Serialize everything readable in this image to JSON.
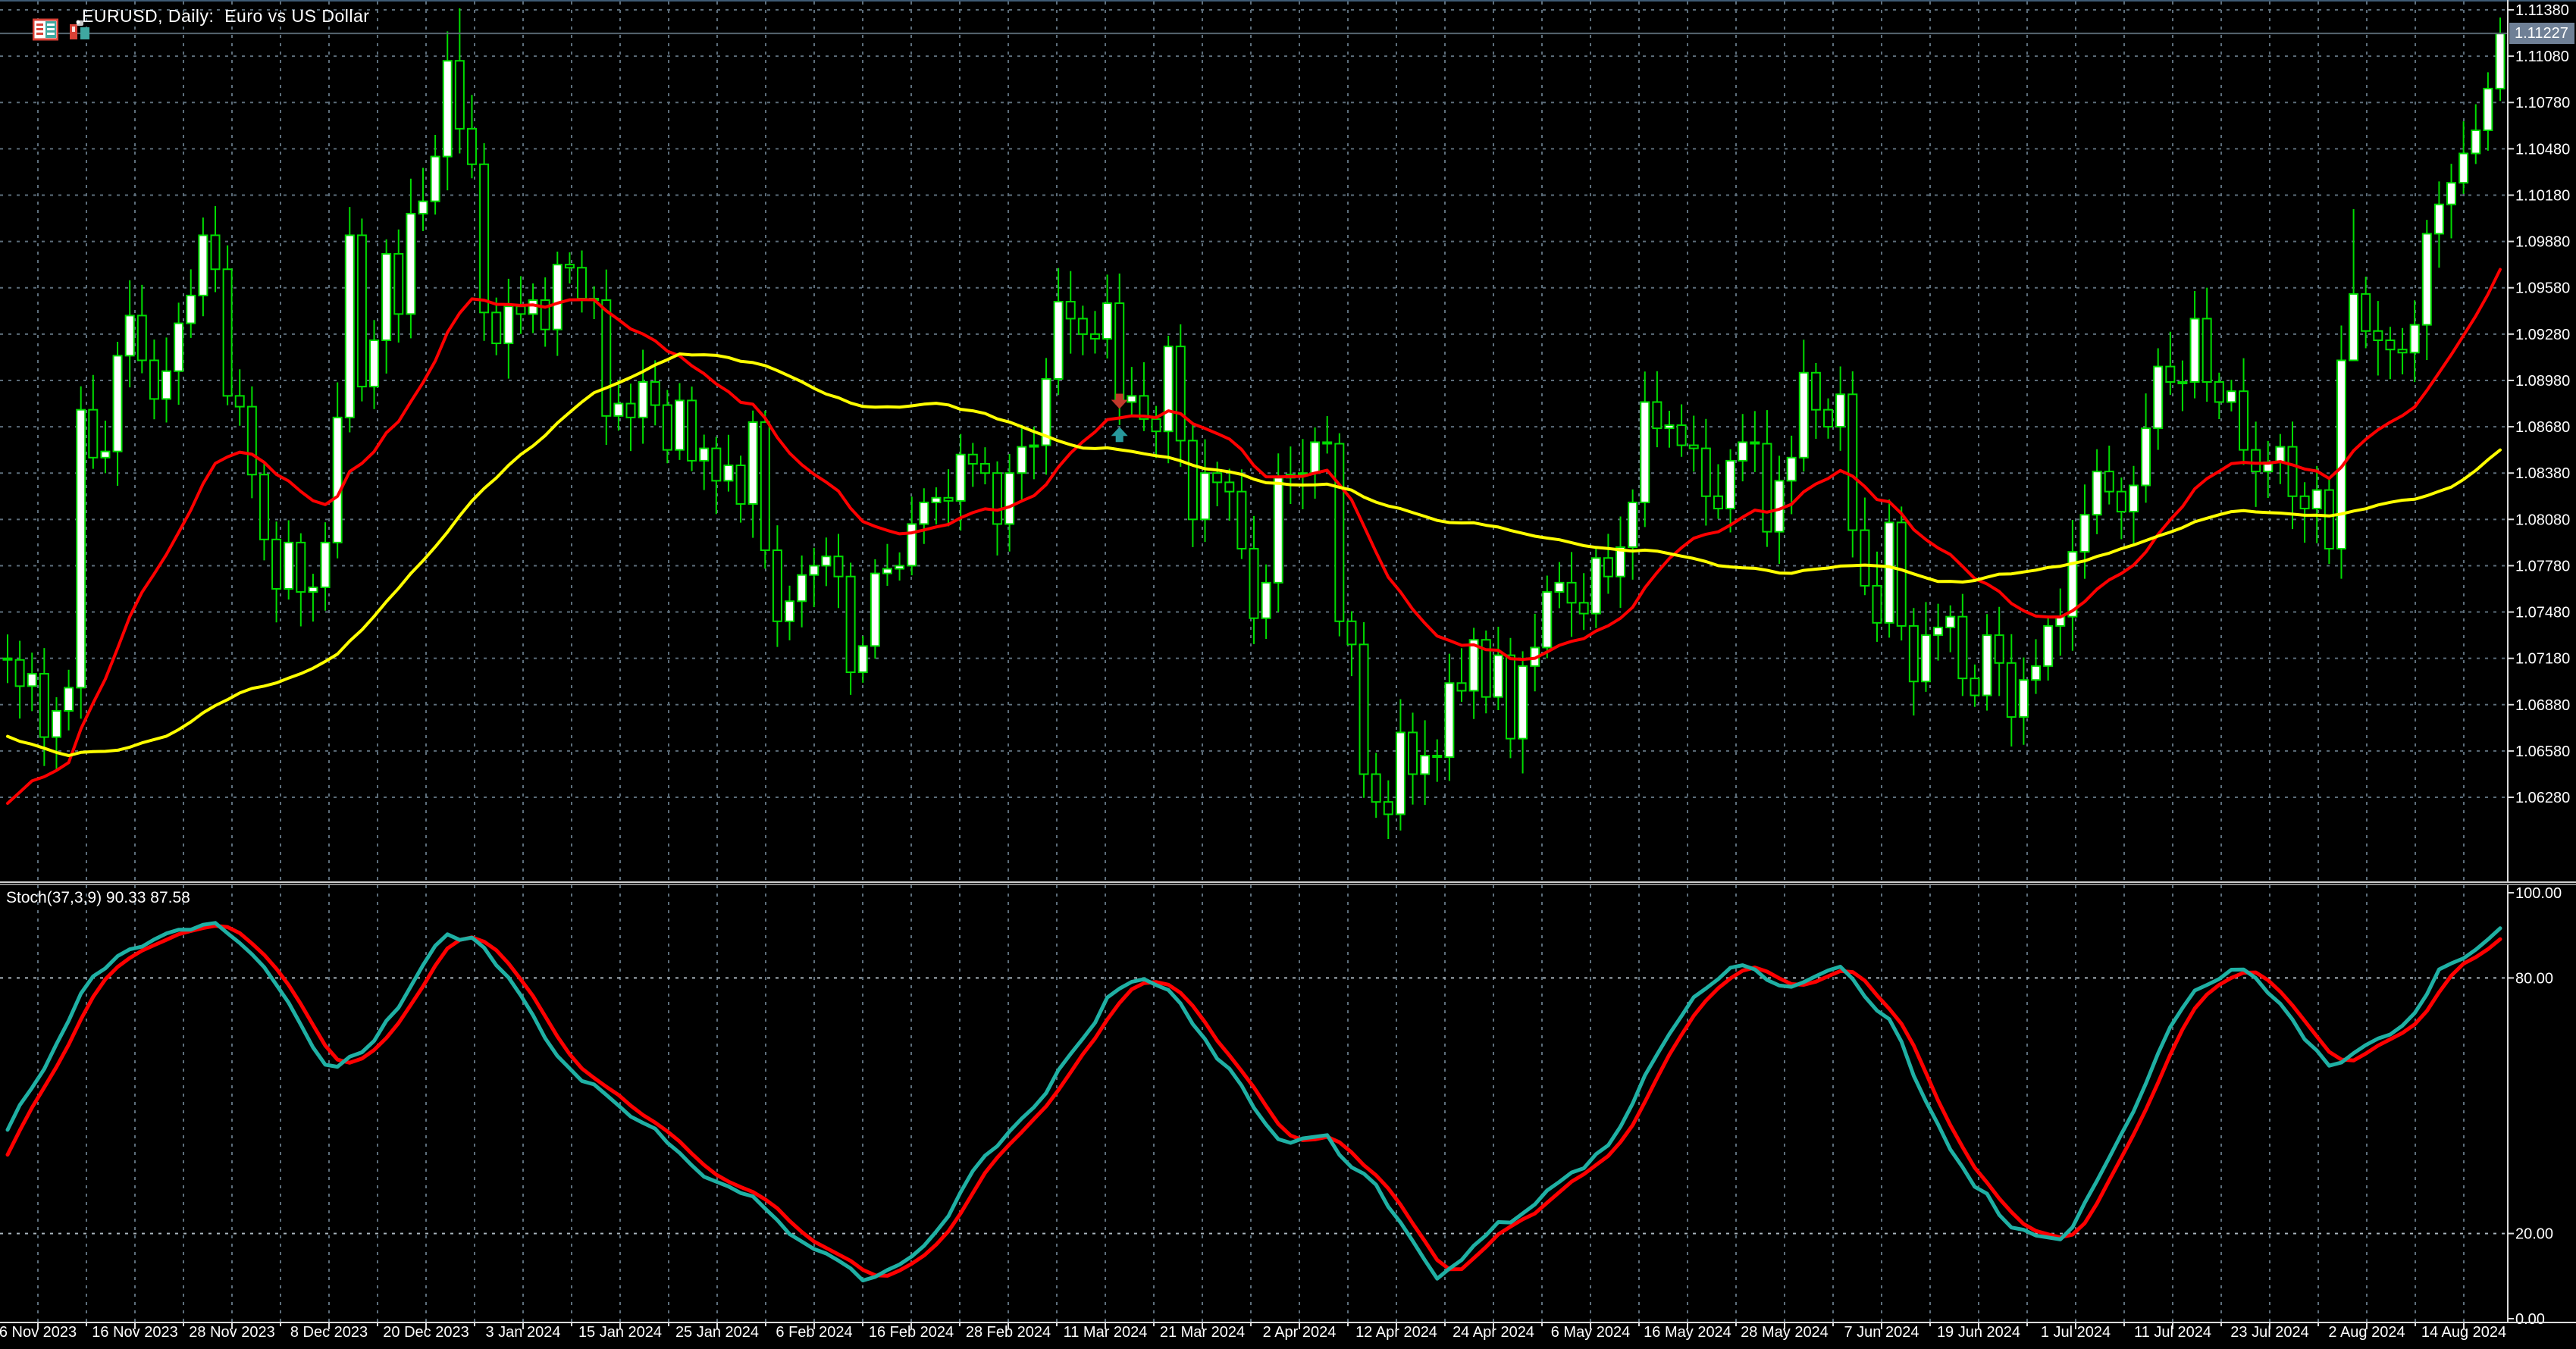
{
  "window": {
    "title": "EURUSD, Daily:  Euro vs US Dollar",
    "icons": [
      {
        "name": "indicator-list-icon"
      },
      {
        "name": "bar-chart-icon"
      }
    ]
  },
  "colors": {
    "background": "#000000",
    "grid": "#5d6e7b",
    "candle_outline": "#00DC00",
    "bull_fill": "#FFFFFF",
    "bear_fill": "#000000",
    "ma_fast": "#FF0000",
    "ma_slow": "#FFFF00",
    "stoch_main": "#1FB0A4",
    "stoch_signal": "#FF0000",
    "level_line": "#A9B5BD",
    "axis_line": "#DCDCDC",
    "axis_text": "#FFFFFF",
    "bid_line": "#56656F",
    "price_tag_bg": "#6F8096",
    "price_tag_text": "#FFFFFF",
    "sell_arrow": "#C0392B",
    "buy_arrow": "#27989B"
  },
  "chart_data": {
    "type": "candlestick",
    "symbol": "EURUSD",
    "timeframe": "Daily",
    "description": "Euro vs US Dollar",
    "x_axis": {
      "labels": [
        "6 Nov 2023",
        "16 Nov 2023",
        "28 Nov 2023",
        "8 Dec 2023",
        "20 Dec 2023",
        "3 Jan 2024",
        "15 Jan 2024",
        "25 Jan 2024",
        "6 Feb 2024",
        "16 Feb 2024",
        "28 Feb 2024",
        "11 Mar 2024",
        "21 Mar 2024",
        "2 Apr 2024",
        "12 Apr 2024",
        "24 Apr 2024",
        "6 May 2024",
        "16 May 2024",
        "28 May 2024",
        "7 Jun 2024",
        "19 Jun 2024",
        "1 Jul 2024",
        "11 Jul 2024",
        "23 Jul 2024",
        "2 Aug 2024",
        "14 Aug 2024"
      ],
      "bars_per_label": 8
    },
    "main_pane": {
      "y_axis": {
        "labels": [
          "1.11380",
          "1.11080",
          "1.10780",
          "1.10480",
          "1.10180",
          "1.09880",
          "1.09580",
          "1.09280",
          "1.08980",
          "1.08680",
          "1.08380",
          "1.08080",
          "1.07780",
          "1.07480",
          "1.07180",
          "1.06880",
          "1.06580",
          "1.06280"
        ],
        "top_value": 1.1138,
        "step": 0.003,
        "current_price": "1.11227",
        "current_price_value": 1.11227
      },
      "pre_closes": [
        1.088,
        1.0873,
        1.0872,
        1.0894,
        1.0844,
        1.0816,
        1.086,
        1.0805,
        1.0794,
        1.0822,
        1.0798,
        1.0778,
        1.0821,
        1.0843,
        1.0877,
        1.0843,
        1.0772,
        1.0777,
        1.0796,
        1.0721,
        1.0702,
        1.0698,
        1.0738,
        1.0697,
        1.0665,
        1.069,
        1.0717,
        1.066,
        1.0636,
        1.062,
        1.0589,
        1.0573,
        1.0633,
        1.0571,
        1.0531,
        1.0488,
        1.0504,
        1.0506,
        1.0529,
        1.0601,
        1.0594,
        1.0628,
        1.053,
        1.0557,
        1.0537,
        1.0581,
        1.054,
        1.0592,
        1.067,
        1.0595,
        1.0567,
        1.0625,
        1.0619,
        1.0648,
        1.0718
      ],
      "closes": [
        1.0717,
        1.07,
        1.0708,
        1.0667,
        1.0684,
        1.0699,
        1.0879,
        1.0848,
        1.0852,
        1.0914,
        1.094,
        1.0911,
        1.0886,
        1.0904,
        1.0935,
        1.0953,
        1.0992,
        1.097,
        1.0888,
        1.0881,
        1.0837,
        1.0795,
        1.0763,
        1.0793,
        1.0761,
        1.0764,
        1.0793,
        1.0874,
        1.0992,
        1.0894,
        1.0924,
        1.098,
        1.0941,
        1.1006,
        1.1014,
        1.1043,
        1.1105,
        1.1061,
        1.1038,
        1.0942,
        1.0922,
        1.0946,
        1.0941,
        1.095,
        1.0931,
        1.0973,
        1.0971,
        1.0951,
        1.095,
        1.0875,
        1.0883,
        1.0874,
        1.0897,
        1.0882,
        1.0853,
        1.0885,
        1.0846,
        1.0854,
        1.0833,
        1.0843,
        1.0818,
        1.0871,
        1.0788,
        1.0742,
        1.0755,
        1.0772,
        1.0778,
        1.0784,
        1.0771,
        1.0709,
        1.0726,
        1.0773,
        1.0776,
        1.0778,
        1.0805,
        1.0819,
        1.0822,
        1.082,
        1.085,
        1.0844,
        1.0838,
        1.0805,
        1.0838,
        1.0855,
        1.0856,
        1.0899,
        1.0949,
        1.0938,
        1.0928,
        1.0925,
        1.0948,
        1.0884,
        1.0888,
        1.0873,
        1.0865,
        1.092,
        1.0859,
        1.0808,
        1.0838,
        1.0832,
        1.0826,
        1.0789,
        1.0744,
        1.0767,
        1.0835,
        1.0837,
        1.0838,
        1.0858,
        1.0857,
        1.0742,
        1.0727,
        1.0643,
        1.0625,
        1.0617,
        1.067,
        1.0643,
        1.0655,
        1.0654,
        1.0702,
        1.0697,
        1.073,
        1.0693,
        1.072,
        1.0666,
        1.0713,
        1.0725,
        1.0761,
        1.0767,
        1.0754,
        1.0747,
        1.0783,
        1.0771,
        1.079,
        1.0819,
        1.0884,
        1.0867,
        1.0869,
        1.0856,
        1.0854,
        1.0823,
        1.0815,
        1.0846,
        1.0858,
        1.0857,
        1.08,
        1.0833,
        1.0848,
        1.0903,
        1.0879,
        1.0868,
        1.0889,
        1.0801,
        1.0765,
        1.0741,
        1.0806,
        1.0739,
        1.0703,
        1.0733,
        1.0738,
        1.0745,
        1.0705,
        1.0694,
        1.0733,
        1.0715,
        1.068,
        1.0704,
        1.0713,
        1.0739,
        1.0745,
        1.0787,
        1.0811,
        1.0839,
        1.0826,
        1.0813,
        1.083,
        1.0867,
        1.0907,
        1.0897,
        1.0897,
        1.0938,
        1.0897,
        1.0884,
        1.0891,
        1.0853,
        1.0839,
        1.0845,
        1.0855,
        1.0823,
        1.0815,
        1.0827,
        1.0789,
        1.0911,
        1.0954,
        1.093,
        1.0924,
        1.0918,
        1.0916,
        1.0934,
        1.0993,
        1.1012,
        1.1026,
        1.1045,
        1.106,
        1.1087,
        1.11227
      ],
      "wick_overrides": {
        "37": [
          1.1139,
          1.1045
        ],
        "113": [
          1.0639,
          1.0601
        ],
        "192": [
          1.1009,
          1.0949
        ],
        "204": [
          1.1133,
          1.1079
        ]
      },
      "overlays": [
        {
          "name": "ma-fast",
          "method": "ema",
          "period": 20,
          "color_key": "ma_fast",
          "width": 4
        },
        {
          "name": "ma-slow",
          "method": "sma",
          "period": 50,
          "color_key": "ma_slow",
          "width": 4
        }
      ],
      "markers": [
        {
          "name": "sell-arrow",
          "bar_index": 91,
          "price": 1.0884,
          "direction": "down",
          "color_key": "sell_arrow"
        },
        {
          "name": "buy-arrow",
          "bar_index": 91,
          "price": 1.08635,
          "direction": "up",
          "color_key": "buy_arrow"
        }
      ]
    },
    "indicator_pane": {
      "name": "Stochastic Oscillator",
      "label": "Stoch(37,3,9) 90.33 87.58",
      "k_period": 37,
      "d_period": 3,
      "slowing": 9,
      "current_main": 90.33,
      "current_signal": 87.58,
      "y_axis": {
        "labels": [
          "100.00",
          "80.00",
          "20.00",
          "0.00"
        ],
        "label_values": [
          100,
          80,
          20,
          0
        ],
        "min": 0,
        "max": 100,
        "levels": [
          80,
          20
        ]
      }
    }
  }
}
